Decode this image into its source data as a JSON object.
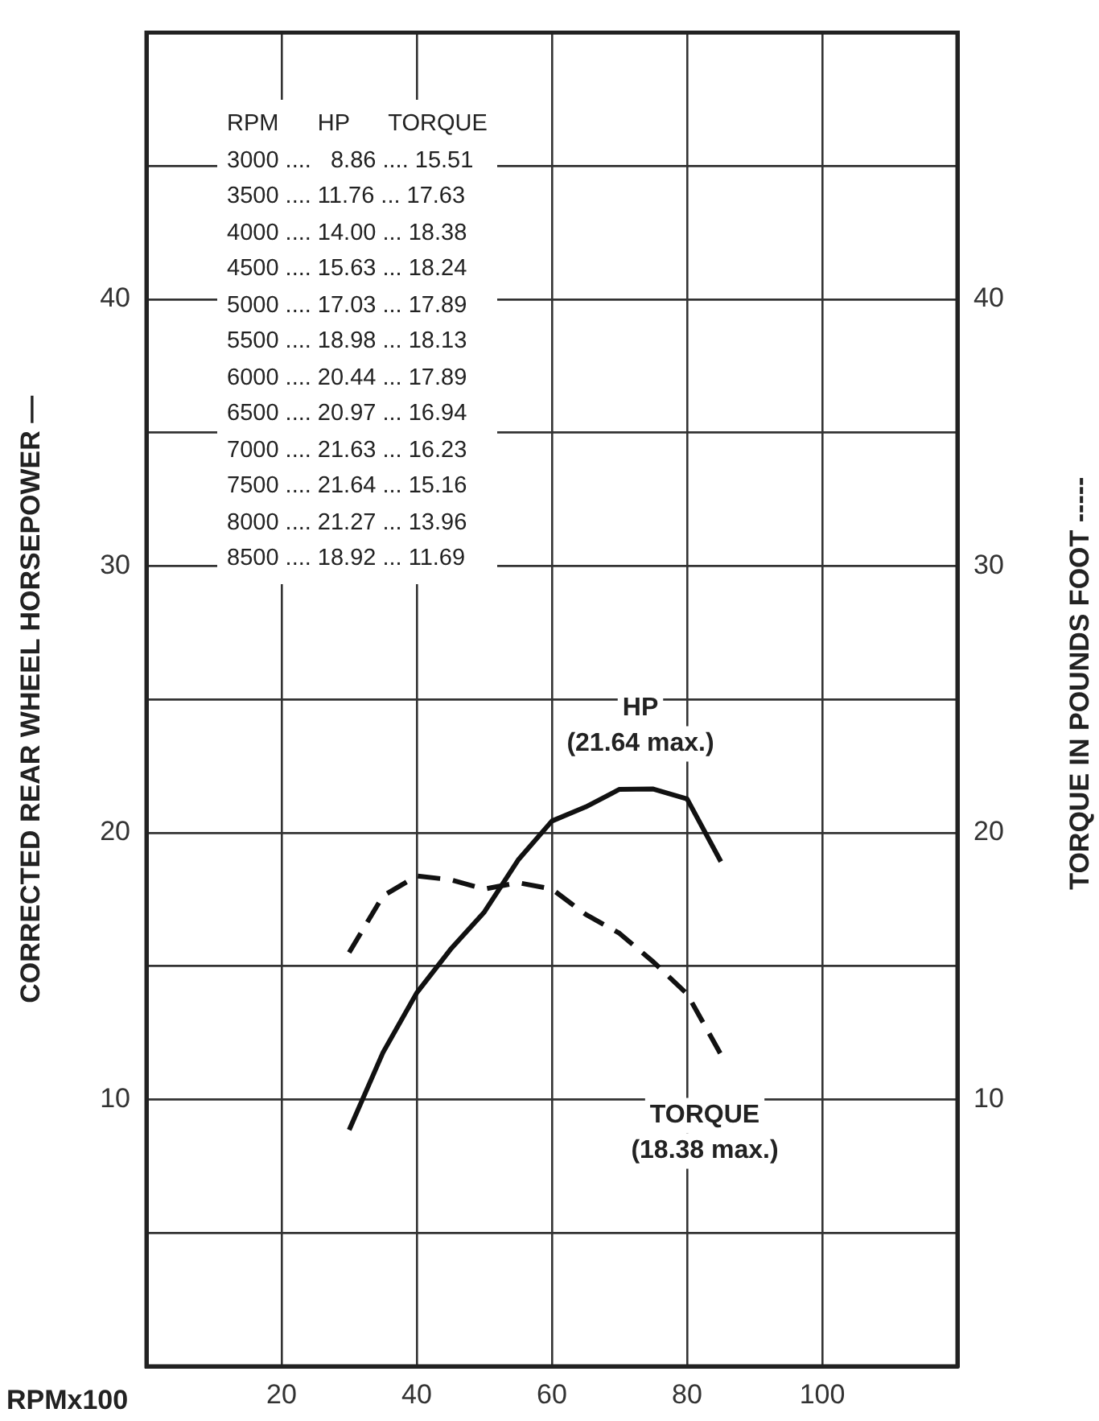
{
  "chart_data": {
    "type": "line",
    "xlabel": "RPMx100",
    "ylabel": "CORRECTED REAR WHEEL HORSEPOWER —",
    "y2label": "TORQUE IN POUNDS FOOT -----",
    "x": [
      30,
      35,
      40,
      45,
      50,
      55,
      60,
      65,
      70,
      75,
      80,
      85
    ],
    "series": [
      {
        "name": "HP",
        "color": "#111111",
        "line_style": "solid",
        "values": [
          8.86,
          11.76,
          14.0,
          15.63,
          17.03,
          18.98,
          20.44,
          20.97,
          21.63,
          21.64,
          21.27,
          18.92
        ]
      },
      {
        "name": "TORQUE",
        "color": "#111111",
        "line_style": "dashed",
        "values": [
          15.51,
          17.63,
          18.38,
          18.24,
          17.89,
          18.13,
          17.89,
          16.94,
          16.23,
          15.16,
          13.96,
          11.69
        ]
      }
    ],
    "xlim": [
      0,
      120
    ],
    "xticks": [
      20,
      40,
      60,
      80,
      100
    ],
    "ylim": [
      0,
      50
    ],
    "yticks": [
      {
        "value": 5,
        "label": null
      },
      10,
      {
        "value": 15,
        "label": null
      },
      20,
      {
        "value": 25,
        "label": null
      },
      30,
      {
        "value": 35,
        "label": null
      },
      40,
      {
        "value": 45,
        "label": null
      }
    ],
    "y2lim": [
      0,
      50
    ],
    "y2ticks": [
      {
        "value": 5,
        "label": null
      },
      10,
      {
        "value": 15,
        "label": null
      },
      20,
      {
        "value": 25,
        "label": null
      },
      30,
      {
        "value": 35,
        "label": null
      },
      40,
      {
        "value": 45,
        "label": null
      }
    ],
    "grid": true,
    "legend": false,
    "marker": "none",
    "annotations": [
      "RPM      HP      TORQUE",
      "3000 ....   8.86 .... 15.51",
      "3500 .... 11.76 ... 17.63",
      "4000 .... 14.00 ... 18.38",
      "4500 .... 15.63 ... 18.24",
      "5000 .... 17.03 ... 17.89",
      "5500 .... 18.98 ... 18.13",
      "6000 .... 20.44 ... 17.89",
      "6500 .... 20.97 ... 16.94",
      "7000 .... 21.63 ... 16.23",
      "7500 .... 21.64 ... 15.16",
      "8000 .... 21.27 ... 13.96",
      "8500 .... 18.92 ... 11.69",
      "(21.64 max.)",
      "(18.38 max.)"
    ]
  }
}
